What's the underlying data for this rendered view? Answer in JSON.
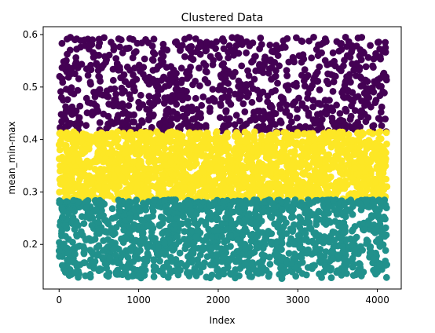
{
  "chart_data": {
    "type": "scatter",
    "title": "Clustered Data",
    "xlabel": "Index",
    "ylabel": "mean_min-max",
    "xlim": [
      -200,
      4300
    ],
    "ylim": [
      0.115,
      0.615
    ],
    "xticks": [
      0,
      1000,
      2000,
      3000,
      4000
    ],
    "yticks": [
      0.2,
      0.3,
      0.4,
      0.5,
      0.6
    ],
    "xtick_labels": [
      "0",
      "1000",
      "2000",
      "3000",
      "4000"
    ],
    "ytick_labels": [
      "0.2",
      "0.3",
      "0.4",
      "0.5",
      "0.6"
    ],
    "grid": false,
    "legend": "none",
    "series": [
      {
        "color": "#440154",
        "x_range": [
          0,
          4120
        ],
        "y_range": [
          0.415,
          0.595
        ],
        "point_count": 900,
        "sample_points": [
          [
            30,
            0.48
          ],
          [
            200,
            0.59
          ],
          [
            420,
            0.59
          ],
          [
            780,
            0.59
          ],
          [
            1650,
            0.57
          ],
          [
            2050,
            0.59
          ],
          [
            2650,
            0.58
          ],
          [
            3200,
            0.595
          ],
          [
            3600,
            0.595
          ],
          [
            4100,
            0.585
          ]
        ]
      },
      {
        "color": "#fde725",
        "x_range": [
          0,
          4120
        ],
        "y_range": [
          0.285,
          0.415
        ],
        "point_count": 1800,
        "sample_points": [
          [
            0,
            0.39
          ],
          [
            500,
            0.41
          ],
          [
            1000,
            0.35
          ],
          [
            1500,
            0.3
          ],
          [
            2000,
            0.38
          ],
          [
            2500,
            0.33
          ],
          [
            3000,
            0.29
          ],
          [
            3500,
            0.4
          ],
          [
            4000,
            0.36
          ],
          [
            4120,
            0.31
          ]
        ]
      },
      {
        "color": "#21918c",
        "x_range": [
          0,
          4120
        ],
        "y_range": [
          0.135,
          0.285
        ],
        "point_count": 1400,
        "sample_points": [
          [
            40,
            0.16
          ],
          [
            500,
            0.15
          ],
          [
            1000,
            0.14
          ],
          [
            1500,
            0.15
          ],
          [
            2000,
            0.14
          ],
          [
            2500,
            0.15
          ],
          [
            2800,
            0.135
          ],
          [
            3500,
            0.15
          ],
          [
            3800,
            0.14
          ],
          [
            4100,
            0.16
          ]
        ]
      }
    ]
  }
}
